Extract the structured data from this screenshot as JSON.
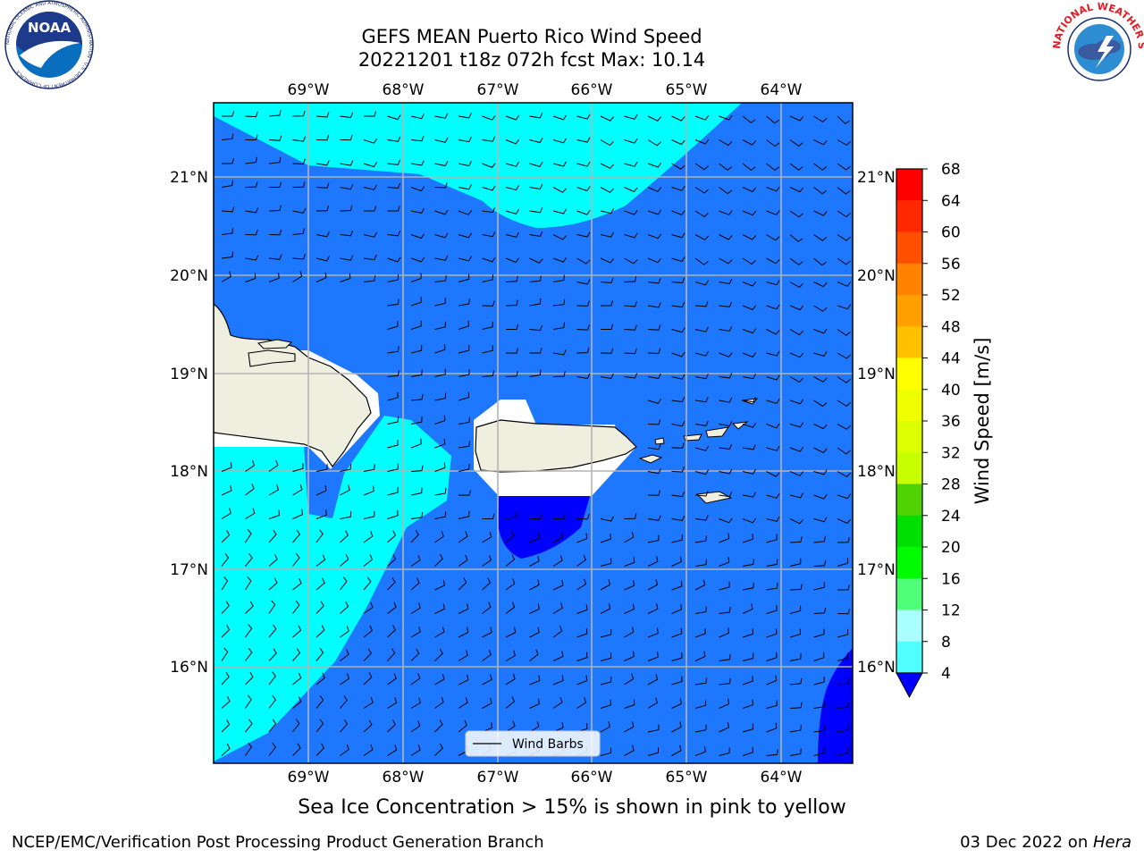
{
  "header": {
    "title_line1": "GEFS MEAN Puerto Rico Wind Speed",
    "title_line2": "20221201 t18z 072h fcst   Max: 10.14"
  },
  "logos": {
    "left": "NOAA",
    "left_ring": "NATIONAL OCEANIC AND ATMOSPHERIC ADMINISTRATION · U.S. DEPARTMENT OF COMMERCE",
    "right_ring": "NATIONAL WEATHER SERVICE"
  },
  "map": {
    "lon_labels": [
      "69°W",
      "68°W",
      "67°W",
      "66°W",
      "65°W",
      "64°W"
    ],
    "lat_labels": [
      "21°N",
      "20°N",
      "19°N",
      "18°N",
      "17°N",
      "16°N"
    ],
    "legend_label": "Wind Barbs"
  },
  "colorbar": {
    "ticks": [
      "68",
      "64",
      "60",
      "56",
      "52",
      "48",
      "44",
      "40",
      "36",
      "32",
      "28",
      "24",
      "20",
      "16",
      "12",
      "8",
      "4"
    ],
    "label": "Wind Speed [m/s]",
    "colors": [
      "#ff0000",
      "#ff2800",
      "#ff5000",
      "#ff8200",
      "#ffa000",
      "#ffc000",
      "#ffff00",
      "#f0ff00",
      "#dcff00",
      "#c8ff00",
      "#50d200",
      "#00e000",
      "#00fa00",
      "#50ff78",
      "#aaffff",
      "#50ffff",
      "#00ffff",
      "#0080ff"
    ],
    "extend_color": "#0000ff"
  },
  "fields": {
    "speed_4_8": "#1e78ff",
    "speed_8_12": "#00ffff",
    "below_4": "#0000ff",
    "land": "#efefdf"
  },
  "caption": "Sea Ice Concentration > 15% is shown in pink to yellow",
  "footer": {
    "left": "NCEP/EMC/Verification Post Processing Product Generation Branch",
    "right_date": "03 Dec 2022 on ",
    "right_machine": "Hera"
  }
}
